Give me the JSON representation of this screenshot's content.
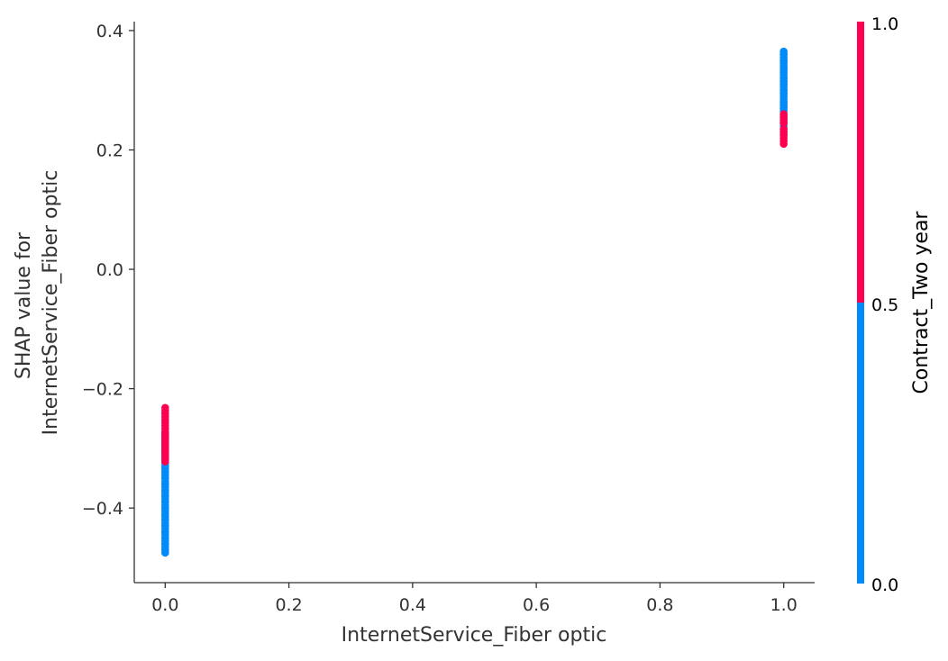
{
  "chart_data": {
    "type": "scatter",
    "title": "",
    "xlabel": "InternetService_Fiber optic",
    "ylabel_lines": [
      "SHAP value for",
      "InternetService_Fiber optic"
    ],
    "xlim": [
      -0.05,
      1.05
    ],
    "ylim": [
      -0.525,
      0.415
    ],
    "x_ticks": [
      0.0,
      0.2,
      0.4,
      0.6,
      0.8,
      1.0
    ],
    "x_tick_labels": [
      "0.0",
      "0.2",
      "0.4",
      "0.6",
      "0.8",
      "1.0"
    ],
    "y_ticks": [
      0.4,
      0.2,
      0.0,
      -0.2,
      -0.4
    ],
    "y_tick_labels": [
      "0.4",
      "0.2",
      "0.0",
      "−0.2",
      "−0.4"
    ],
    "grid": false,
    "colorbar": {
      "label": "Contract_Two year",
      "range": [
        0.0,
        1.0
      ],
      "tick_labels": [
        "1.0",
        "0.5",
        "0.0"
      ],
      "low_color": "#008bfb",
      "high_color": "#ff0051"
    },
    "series": [
      {
        "color_value": 0,
        "color": "#008bfb",
        "x": [
          0,
          0,
          0,
          0,
          0,
          0,
          0,
          0,
          0,
          0,
          0,
          0,
          0,
          0,
          0,
          0,
          0,
          0,
          0,
          0,
          0,
          0,
          0,
          0,
          0,
          0,
          0,
          0,
          0,
          0,
          0,
          0,
          0,
          0,
          0,
          0,
          0,
          0,
          0,
          0,
          0,
          0,
          0,
          0,
          0,
          0,
          0,
          0,
          0,
          0,
          0,
          0,
          0,
          0,
          0,
          0,
          0,
          0,
          0,
          0,
          1,
          1,
          1,
          1,
          1,
          1,
          1,
          1,
          1,
          1,
          1,
          1,
          1,
          1,
          1,
          1,
          1,
          1,
          1,
          1,
          1,
          1,
          1,
          1,
          1,
          1,
          1,
          1,
          1,
          1,
          1,
          1,
          1,
          1,
          1,
          1,
          1,
          1,
          1,
          1,
          1,
          1,
          1,
          1,
          1,
          1
        ],
        "y": [
          -0.475,
          -0.47,
          -0.465,
          -0.46,
          -0.455,
          -0.45,
          -0.445,
          -0.44,
          -0.435,
          -0.43,
          -0.425,
          -0.42,
          -0.415,
          -0.41,
          -0.405,
          -0.4,
          -0.395,
          -0.39,
          -0.385,
          -0.38,
          -0.375,
          -0.37,
          -0.365,
          -0.36,
          -0.355,
          -0.35,
          -0.345,
          -0.34,
          -0.335,
          -0.33,
          -0.325,
          -0.32,
          -0.315,
          -0.31,
          -0.305,
          -0.3,
          -0.295,
          -0.29,
          -0.43,
          -0.41,
          -0.39,
          -0.37,
          -0.35,
          -0.33,
          -0.38,
          -0.36,
          -0.34,
          -0.44,
          -0.42,
          -0.4,
          -0.46,
          -0.45,
          -0.47,
          -0.32,
          -0.31,
          -0.3,
          -0.295,
          -0.285,
          -0.28,
          -0.275,
          0.225,
          0.23,
          0.235,
          0.24,
          0.245,
          0.25,
          0.255,
          0.26,
          0.265,
          0.27,
          0.275,
          0.28,
          0.285,
          0.29,
          0.295,
          0.3,
          0.305,
          0.31,
          0.315,
          0.32,
          0.325,
          0.33,
          0.335,
          0.34,
          0.345,
          0.35,
          0.355,
          0.36,
          0.365,
          0.245,
          0.26,
          0.28,
          0.3,
          0.32,
          0.34,
          0.36,
          0.27,
          0.29,
          0.31,
          0.33,
          0.35,
          0.255,
          0.275,
          0.295,
          0.315,
          0.335
        ]
      },
      {
        "color_value": 1,
        "color": "#ff0051",
        "x": [
          0,
          0,
          0,
          0,
          0,
          0,
          0,
          0,
          0,
          0,
          0,
          0,
          0,
          0,
          0,
          0,
          0,
          0,
          0,
          0,
          0,
          0,
          1,
          1,
          1,
          1,
          1,
          1,
          1,
          1,
          1,
          1
        ],
        "y": [
          -0.232,
          -0.237,
          -0.242,
          -0.247,
          -0.252,
          -0.257,
          -0.262,
          -0.267,
          -0.272,
          -0.277,
          -0.282,
          -0.287,
          -0.292,
          -0.297,
          -0.302,
          -0.307,
          -0.312,
          -0.317,
          -0.322,
          -0.275,
          -0.285,
          -0.305,
          0.21,
          0.215,
          0.22,
          0.225,
          0.23,
          0.235,
          0.245,
          0.25,
          0.255,
          0.26
        ]
      }
    ]
  }
}
